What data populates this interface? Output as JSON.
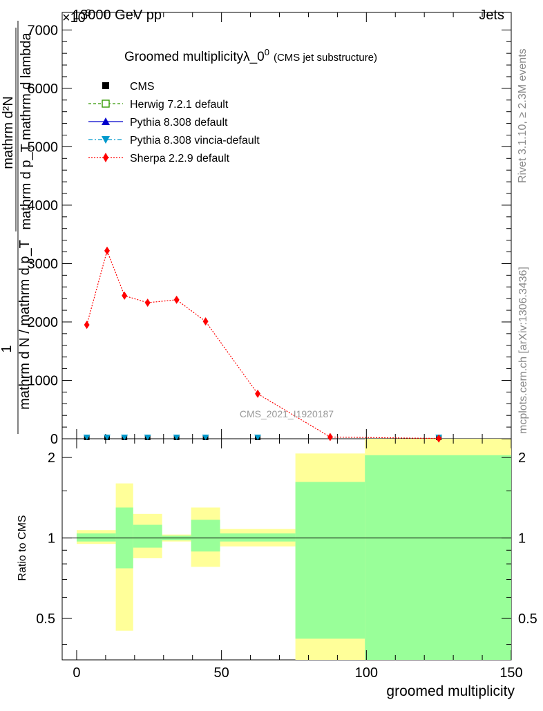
{
  "header": {
    "left": "13000 GeV pp",
    "exponent_label": "×10",
    "exponent_power": "3",
    "right": "Jets"
  },
  "side": {
    "rivet": "Rivet 3.1.10, ≥ 2.3M events",
    "mcplots": "mcplots.cern.ch [arXiv:1306.3436]"
  },
  "plot_title": {
    "main": "Groomed multiplicityλ_0",
    "sup": "0",
    "sub": "(CMS jet substructure)"
  },
  "watermark": "CMS_2021_I1920187",
  "legend": [
    {
      "label": "CMS",
      "color": "#000000",
      "marker": "square-filled",
      "line": "none"
    },
    {
      "label": "Herwig 7.2.1 default",
      "color": "#339900",
      "marker": "square-open",
      "line": "dashed"
    },
    {
      "label": "Pythia 8.308 default",
      "color": "#0000cc",
      "marker": "triangle-up",
      "line": "solid"
    },
    {
      "label": "Pythia 8.308 vincia-default",
      "color": "#0099cc",
      "marker": "triangle-down",
      "line": "dashdot"
    },
    {
      "label": "Sherpa 2.2.9 default",
      "color": "#ff0000",
      "marker": "diamond",
      "line": "dotted"
    }
  ],
  "chart_data": [
    {
      "type": "line",
      "panel": "main",
      "ylabel_parts": {
        "one": "1",
        "top_numerator": "mathrm d²N",
        "top_denominator": "mathrm d p_T mathrm d lambda",
        "bottom": "mathrm d N / mathrm d p_T"
      },
      "xlim": [
        -5,
        150
      ],
      "ylim": [
        0,
        7300
      ],
      "y_ticks": [
        0,
        1000,
        2000,
        3000,
        4000,
        5000,
        6000,
        7000
      ],
      "y_tick_labels": [
        "0",
        "1000",
        "2000",
        "3000",
        "4000",
        "5000",
        "6000",
        "7000"
      ],
      "y_tick_labels_visible": [
        "0",
        "1000",
        "2000",
        "3000",
        "4000",
        "5000",
        "6000",
        "7000"
      ],
      "series": [
        {
          "name": "Sherpa 2.2.9 default",
          "x": [
            3.5,
            10.5,
            16.5,
            24.5,
            34.5,
            44.5,
            62.5,
            87.5,
            125
          ],
          "y": [
            1950,
            3220,
            2450,
            2330,
            2380,
            2010,
            770,
            30,
            5
          ]
        },
        {
          "name": "CMS",
          "x": [
            3.5,
            10.5,
            16.5,
            24.5,
            34.5,
            44.5,
            62.5,
            125
          ],
          "y": [
            0,
            0,
            0,
            0,
            0,
            0,
            0,
            0
          ]
        },
        {
          "name": "Pythia 8.308 vincia-default",
          "x": [
            3.5,
            10.5,
            16.5,
            24.5,
            34.5,
            44.5,
            62.5,
            125
          ],
          "y": [
            0,
            0,
            0,
            0,
            0,
            0,
            0,
            0
          ]
        }
      ]
    },
    {
      "type": "area",
      "panel": "ratio",
      "ylabel": "Ratio to CMS",
      "xlabel": "groomed multiplicity",
      "xlim": [
        -5,
        150
      ],
      "ylim": [
        0.35,
        2.35
      ],
      "x_tick_labels": [
        "0",
        "50",
        "100",
        "150"
      ],
      "y_tick_labels": [
        "0.5",
        "1",
        "2"
      ],
      "bins": [
        {
          "x0": 0,
          "x1": 13.5,
          "yellow": [
            0.95,
            1.07
          ],
          "green": [
            0.97,
            1.04
          ]
        },
        {
          "x0": 13.5,
          "x1": 19.5,
          "yellow": [
            0.45,
            1.6
          ],
          "green": [
            0.77,
            1.3
          ]
        },
        {
          "x0": 19.5,
          "x1": 29.5,
          "yellow": [
            0.84,
            1.23
          ],
          "green": [
            0.92,
            1.12
          ]
        },
        {
          "x0": 29.5,
          "x1": 39.5,
          "yellow": [
            0.97,
            1.03
          ],
          "green": [
            0.98,
            1.02
          ]
        },
        {
          "x0": 39.5,
          "x1": 49.5,
          "yellow": [
            0.78,
            1.3
          ],
          "green": [
            0.89,
            1.17
          ]
        },
        {
          "x0": 49.5,
          "x1": 75.5,
          "yellow": [
            0.93,
            1.08
          ],
          "green": [
            0.97,
            1.04
          ]
        },
        {
          "x0": 75.5,
          "x1": 99.5,
          "yellow": [
            0.35,
            2.07
          ],
          "green": [
            0.42,
            1.62
          ]
        },
        {
          "x0": 99.5,
          "x1": 150,
          "yellow": [
            0.35,
            2.35
          ],
          "green": [
            0.35,
            2.04
          ]
        }
      ]
    }
  ]
}
